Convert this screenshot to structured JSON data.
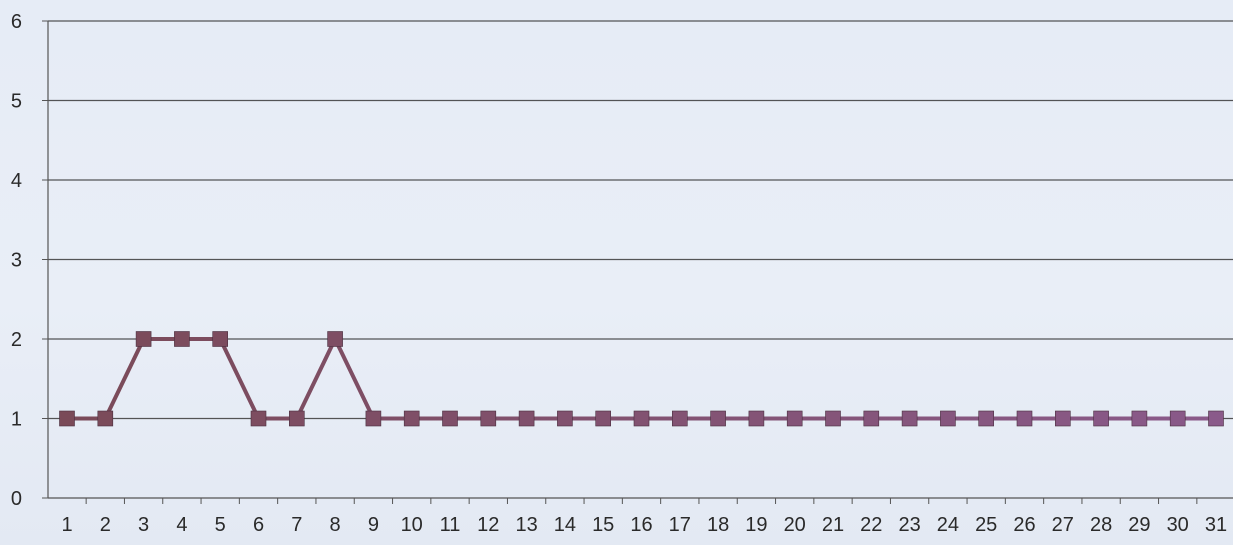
{
  "chart_data": {
    "type": "line",
    "title": "",
    "xlabel": "",
    "ylabel": "",
    "x": [
      1,
      2,
      3,
      4,
      5,
      6,
      7,
      8,
      9,
      10,
      11,
      12,
      13,
      14,
      15,
      16,
      17,
      18,
      19,
      20,
      21,
      22,
      23,
      24,
      25,
      26,
      27,
      28,
      29,
      30,
      31
    ],
    "x_tick_labels": [
      "1",
      "2",
      "3",
      "4",
      "5",
      "6",
      "7",
      "8",
      "9",
      "10",
      "11",
      "12",
      "13",
      "14",
      "15",
      "16",
      "17",
      "18",
      "19",
      "20",
      "21",
      "22",
      "23",
      "24",
      "25",
      "26",
      "27",
      "28",
      "29",
      "30",
      "31"
    ],
    "y_tick_labels": [
      "0",
      "1",
      "2",
      "3",
      "4",
      "5",
      "6"
    ],
    "ylim": [
      0,
      6
    ],
    "grid": "horizontal",
    "legend": "none",
    "series": [
      {
        "values": [
          1,
          1,
          2,
          2,
          2,
          1,
          1,
          2,
          1,
          1,
          1,
          1,
          1,
          1,
          1,
          1,
          1,
          1,
          1,
          1,
          1,
          1,
          1,
          1,
          1,
          1,
          1,
          1,
          1,
          1,
          1
        ],
        "line_color_start": "#7a4a58",
        "line_color_end": "#8a5a8a",
        "marker": "square"
      }
    ],
    "gridline_color": "#3a3a3a",
    "axis_color": "#555555"
  }
}
